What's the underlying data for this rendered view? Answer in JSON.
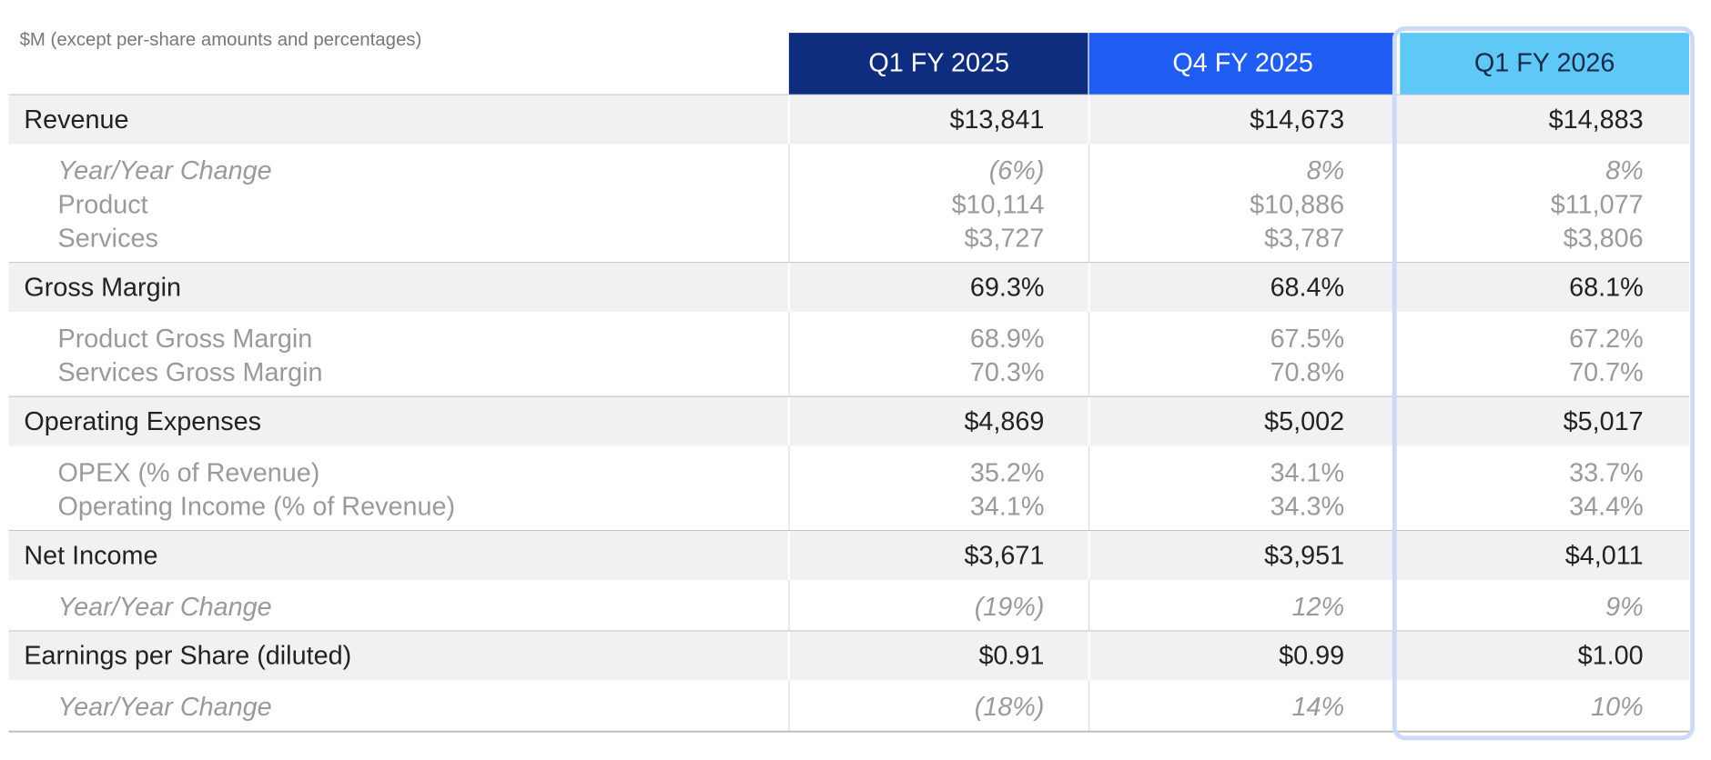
{
  "note": "$M (except per-share amounts and percentages)",
  "columns": [
    {
      "label": "Q1 FY 2025",
      "color": "#0e2d7e",
      "text_color": "#ffffff"
    },
    {
      "label": "Q4 FY 2025",
      "color": "#1e5cf2",
      "text_color": "#ffffff"
    },
    {
      "label": "Q1 FY 2026",
      "color": "#5ec9f6",
      "text_color": "#1a2a4a"
    }
  ],
  "highlight_column": 2,
  "sections": [
    {
      "label": "Revenue",
      "values": [
        "$13,841",
        "$14,673",
        "$14,883"
      ],
      "rows": [
        {
          "label": "Year/Year Change",
          "italic": true,
          "values": [
            "(6%)",
            "8%",
            "8%"
          ]
        },
        {
          "label": "Product",
          "italic": false,
          "values": [
            "$10,114",
            "$10,886",
            "$11,077"
          ]
        },
        {
          "label": "Services",
          "italic": false,
          "values": [
            "$3,727",
            "$3,787",
            "$3,806"
          ]
        }
      ]
    },
    {
      "label": "Gross Margin",
      "values": [
        "69.3%",
        "68.4%",
        "68.1%"
      ],
      "rows": [
        {
          "label": "Product Gross Margin",
          "italic": false,
          "values": [
            "68.9%",
            "67.5%",
            "67.2%"
          ]
        },
        {
          "label": "Services Gross Margin",
          "italic": false,
          "values": [
            "70.3%",
            "70.8%",
            "70.7%"
          ]
        }
      ]
    },
    {
      "label": "Operating Expenses",
      "values": [
        "$4,869",
        "$5,002",
        "$5,017"
      ],
      "rows": [
        {
          "label": "OPEX (% of Revenue)",
          "italic": false,
          "values": [
            "35.2%",
            "34.1%",
            "33.7%"
          ]
        },
        {
          "label": "Operating Income (% of Revenue)",
          "italic": false,
          "values": [
            "34.1%",
            "34.3%",
            "34.4%"
          ]
        }
      ]
    },
    {
      "label": "Net Income",
      "values": [
        "$3,671",
        "$3,951",
        "$4,011"
      ],
      "rows": [
        {
          "label": "Year/Year Change",
          "italic": true,
          "values": [
            "(19%)",
            "12%",
            "9%"
          ]
        }
      ]
    },
    {
      "label": "Earnings per Share (diluted)",
      "values": [
        "$0.91",
        "$0.99",
        "$1.00"
      ],
      "rows": [
        {
          "label": "Year/Year Change",
          "italic": true,
          "values": [
            "(18%)",
            "14%",
            "10%"
          ]
        }
      ]
    }
  ]
}
